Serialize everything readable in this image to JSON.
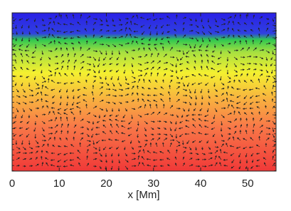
{
  "chart_data": {
    "type": "heatmap",
    "xlabel": "x [Mm]",
    "xlim": [
      0,
      56
    ],
    "xticks": [
      0,
      10,
      20,
      30,
      40,
      50
    ]
  }
}
